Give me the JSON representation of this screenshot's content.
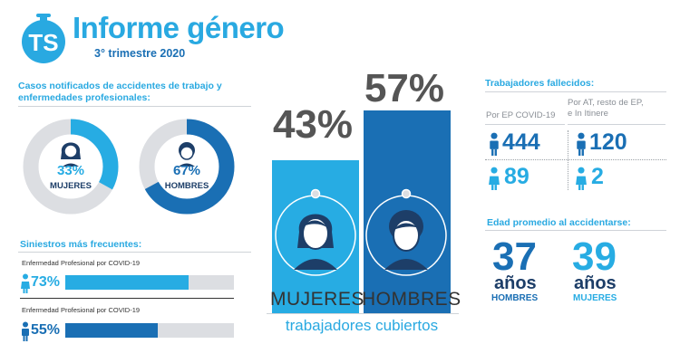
{
  "header": {
    "logo_text": "TS",
    "title": "Informe género",
    "subtitle": "3° trimestre 2020"
  },
  "cases": {
    "title": "Casos notificados de accidentes de trabajo y enfermedades profesionales:",
    "women": {
      "value": "33%",
      "label": "MUJERES",
      "fraction": 0.33
    },
    "men": {
      "value": "67%",
      "label": "HOMBRES",
      "fraction": 0.67
    }
  },
  "frequent": {
    "title": "Siniestros más frecuentes:",
    "items": [
      {
        "label": "Enfermedad  Profesional  por COVID-19",
        "value": "73%",
        "fraction": 0.73,
        "color": "#27ace3"
      },
      {
        "label": "Enfermedad  Profesional  por COVID-19",
        "value": "55%",
        "fraction": 0.55,
        "color": "#1a6fb4"
      }
    ]
  },
  "covered": {
    "caption": "trabajadores cubiertos",
    "women": {
      "value": "43%",
      "label": "MUJERES"
    },
    "men": {
      "value": "57%",
      "label": "HOMBRES"
    }
  },
  "deaths": {
    "title": "Trabajadores fallecidos:",
    "col1_header": "Por EP COVID-19",
    "col2_header": "Por AT, resto de EP, e In Itinere",
    "men_covid": "444",
    "men_other": "120",
    "women_covid": "89",
    "women_other": "2"
  },
  "age": {
    "title": "Edad promedio al accidentarse:",
    "men": {
      "value": "37",
      "unit": "años",
      "label": "HOMBRES"
    },
    "women": {
      "value": "39",
      "unit": "años",
      "label": "MUJERES"
    }
  },
  "colors": {
    "light_blue": "#27ace3",
    "dark_blue": "#1a6fb4",
    "gray": "#dcdee2"
  },
  "chart_data": {
    "type": "bar",
    "categories": [
      "MUJERES",
      "HOMBRES"
    ],
    "values": [
      43,
      57
    ],
    "xlabel": "trabajadores cubiertos",
    "ylim": [
      0,
      60
    ]
  }
}
